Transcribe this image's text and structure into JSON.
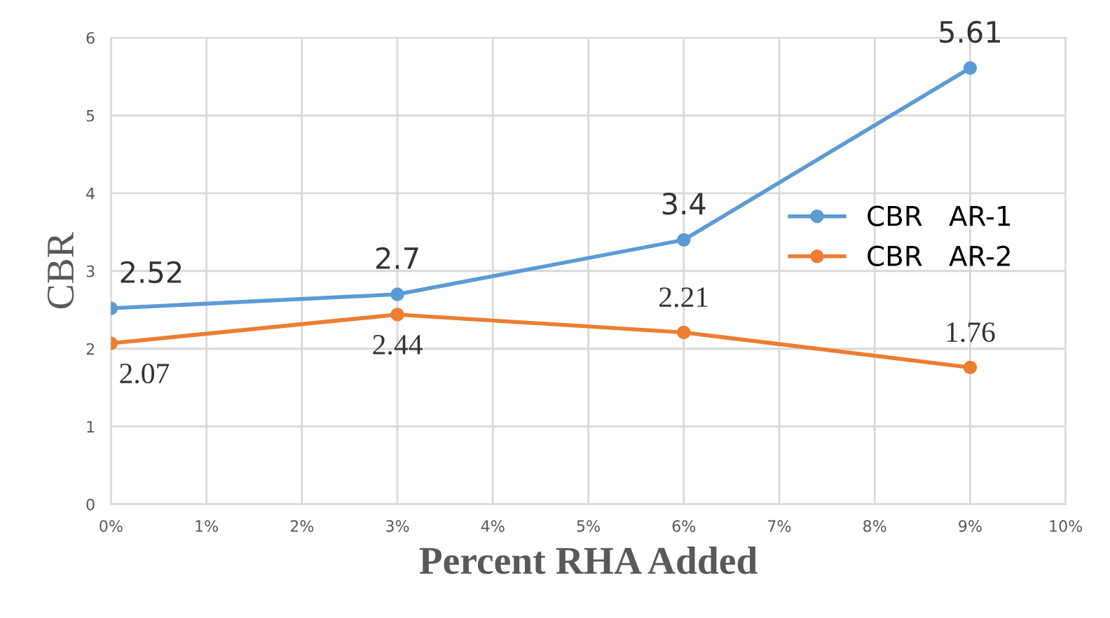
{
  "chart_data": {
    "type": "line",
    "xlabel": "Percent RHA Added",
    "ylabel": "CBR",
    "x": [
      0,
      3,
      6,
      9
    ],
    "series": [
      {
        "name": "CBR   AR-1",
        "color": "#5b9bd5",
        "values": [
          2.52,
          2.7,
          3.4,
          5.61
        ]
      },
      {
        "name": "CBR   AR-2",
        "color": "#ed7d31",
        "values": [
          2.07,
          2.44,
          2.21,
          1.76
        ]
      }
    ],
    "xlim": [
      0,
      10
    ],
    "xticks": [
      {
        "value": 0,
        "label": "0%"
      },
      {
        "value": 1,
        "label": "1%"
      },
      {
        "value": 2,
        "label": "2%"
      },
      {
        "value": 3,
        "label": "3%"
      },
      {
        "value": 4,
        "label": "4%"
      },
      {
        "value": 5,
        "label": "5%"
      },
      {
        "value": 6,
        "label": "6%"
      },
      {
        "value": 7,
        "label": "7%"
      },
      {
        "value": 8,
        "label": "8%"
      },
      {
        "value": 9,
        "label": "9%"
      },
      {
        "value": 10,
        "label": "10%"
      }
    ],
    "ylim": [
      0,
      6
    ],
    "yticks": [
      0,
      1,
      2,
      3,
      4,
      5,
      6
    ],
    "grid": true,
    "legend": "right",
    "marker": "circle",
    "line_style": "solid",
    "data_labels": true
  }
}
